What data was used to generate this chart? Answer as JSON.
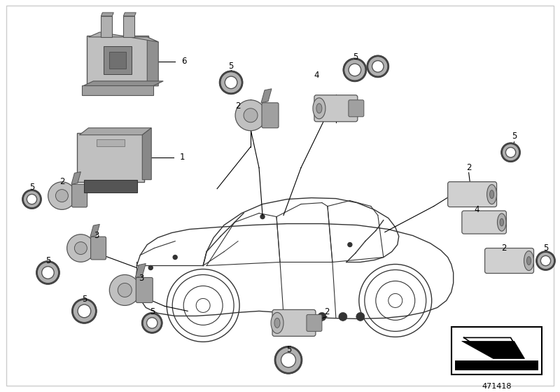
{
  "background_color": "#ffffff",
  "fig_width": 8.0,
  "fig_height": 5.6,
  "dpi": 100,
  "diagram_id": "471418",
  "line_color": "#000000",
  "car_line_color": "#333333",
  "part_gray_light": "#c8c8c8",
  "part_gray_mid": "#a0a0a0",
  "part_gray_dark": "#707070",
  "label_fontsize": 8.5
}
